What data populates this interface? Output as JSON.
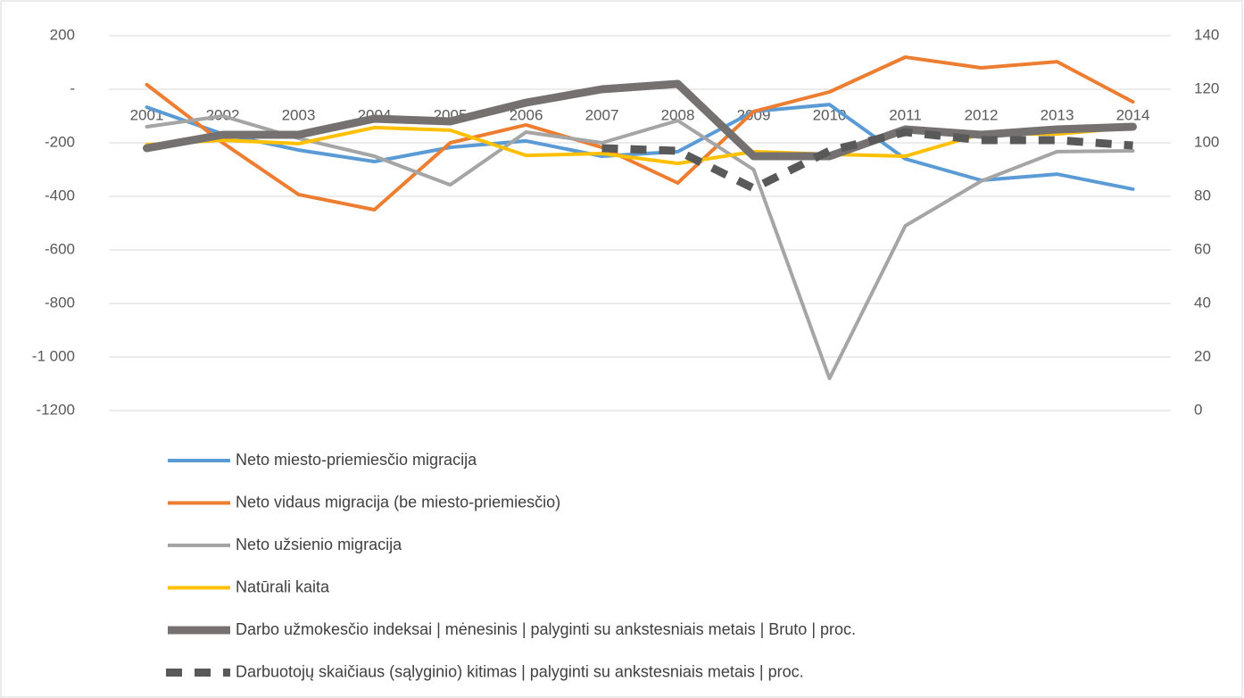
{
  "chart_data": {
    "type": "line",
    "categories": [
      "2001",
      "2002",
      "2003",
      "2004",
      "2005",
      "2006",
      "2007",
      "2008",
      "2009",
      "2010",
      "2011",
      "2012",
      "2013",
      "2014"
    ],
    "ylim": [
      -1200,
      200
    ],
    "yticks": [
      -1200,
      {
        "value": -1000,
        "label": "-1 000"
      },
      -800,
      -600,
      -400,
      -200,
      {
        "value": 0,
        "label": "-"
      },
      200
    ],
    "y2lim": [
      0,
      140
    ],
    "y2ticks": [
      0,
      20,
      40,
      60,
      80,
      100,
      120,
      140
    ],
    "grid": true,
    "legend": "bottom",
    "series": [
      {
        "name": "Neto miesto-priemiesčio migracija",
        "color": "#5b9bd5",
        "width": 4,
        "values": [
          -67,
          -167,
          -227,
          -270,
          -217,
          -193,
          -250,
          -233,
          -83,
          -57,
          -260,
          -340,
          -317,
          -373
        ]
      },
      {
        "name": "Neto vidaus migracija (be miesto-priemiesčio)",
        "color": "#ed7d31",
        "width": 4,
        "values": [
          17,
          -200,
          -393,
          -450,
          -200,
          -133,
          -217,
          -350,
          -83,
          -10,
          120,
          80,
          103,
          -47
        ]
      },
      {
        "name": "Neto užsienio migracija",
        "color": "#a5a5a5",
        "width": 4,
        "values": [
          -140,
          -100,
          -183,
          -250,
          -357,
          -160,
          -200,
          -117,
          -300,
          -1080,
          -510,
          -343,
          -233,
          -230
        ]
      },
      {
        "name": "Natūrali kaita",
        "color": "#ffc000",
        "width": 4,
        "values": [
          -207,
          -190,
          -203,
          -143,
          -153,
          -247,
          -240,
          -277,
          -233,
          -243,
          -250,
          -167,
          -167,
          -143
        ]
      },
      {
        "name": "Darbo užmokesčio indeksai | mėnesinis | palyginti su ankstesniais metais | Bruto | proc.",
        "color": "#767171",
        "width": 9,
        "axis": "y2",
        "values": [
          98,
          103,
          103,
          109,
          108,
          115,
          120,
          122,
          95,
          95,
          105,
          103,
          105,
          106
        ]
      },
      {
        "name": "Darbuotojų skaičiaus (sąlyginio) kitimas | palyginti su ankstesniais metais | proc.",
        "color": "#595959",
        "width": 9,
        "dash": true,
        "axis": "y2",
        "values": [
          null,
          null,
          null,
          null,
          null,
          null,
          98,
          97,
          83,
          97,
          104,
          101,
          101,
          99
        ]
      }
    ]
  }
}
